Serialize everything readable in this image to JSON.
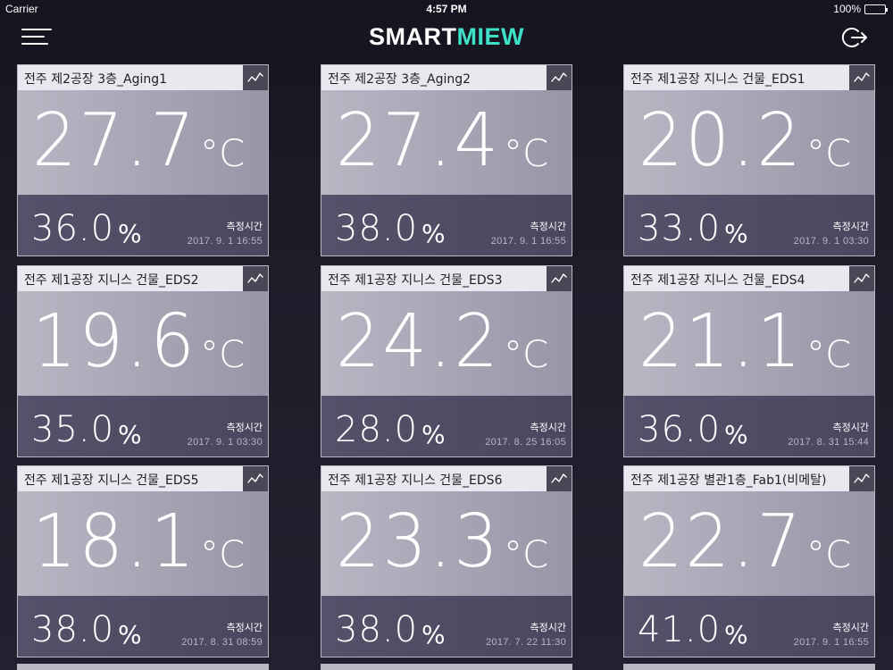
{
  "status": {
    "carrier": "Carrier",
    "time": "4:57 PM",
    "battery": "100%"
  },
  "header": {
    "logo_part1": "SMART",
    "logo_part2": "MIEW",
    "menu_icon": "hamburger-menu-icon",
    "logout_icon": "logout-icon"
  },
  "colors": {
    "accent": "#3fe0c8",
    "background": "#1b1a26",
    "card_header": "#e9e8ef"
  },
  "labels": {
    "temp_unit": "°C",
    "humidity_unit": "%",
    "measure_label": "측정시간"
  },
  "sensors": [
    {
      "name": "전주 제2공장 3층_Aging1",
      "temperature": "27.7",
      "humidity": "36.0",
      "measured_at": "2017. 9. 1  16:55"
    },
    {
      "name": "전주 제2공장 3층_Aging2",
      "temperature": "27.4",
      "humidity": "38.0",
      "measured_at": "2017. 9. 1  16:55"
    },
    {
      "name": "전주 제1공장 지니스 건물_EDS1",
      "temperature": "20.2",
      "humidity": "33.0",
      "measured_at": "2017. 9. 1  03:30"
    },
    {
      "name": "전주 제1공장 지니스 건물_EDS2",
      "temperature": "19.6",
      "humidity": "35.0",
      "measured_at": "2017. 9. 1  03:30"
    },
    {
      "name": "전주 제1공장 지니스 건물_EDS3",
      "temperature": "24.2",
      "humidity": "28.0",
      "measured_at": "2017. 8. 25  16:05"
    },
    {
      "name": "전주 제1공장 지니스 건물_EDS4",
      "temperature": "21.1",
      "humidity": "36.0",
      "measured_at": "2017. 8. 31  15:44"
    },
    {
      "name": "전주 제1공장 지니스 건물_EDS5",
      "temperature": "18.1",
      "humidity": "38.0",
      "measured_at": "2017. 8. 31  08:59"
    },
    {
      "name": "전주 제1공장 지니스 건물_EDS6",
      "temperature": "23.3",
      "humidity": "38.0",
      "measured_at": "2017. 7. 22  11:30"
    },
    {
      "name": "전주 제1공장 별관1층_Fab1(비메탈)",
      "temperature": "22.7",
      "humidity": "41.0",
      "measured_at": "2017. 9. 1  16:55"
    }
  ]
}
